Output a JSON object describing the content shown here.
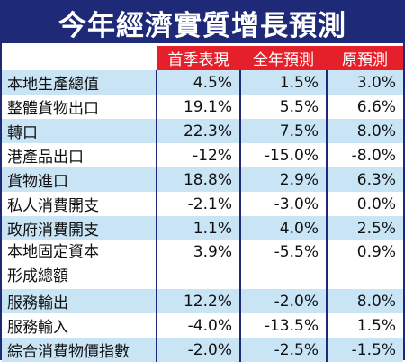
{
  "title": "今年經濟實質增長預測",
  "chart_data": {
    "type": "table",
    "columns": [
      "首季表現",
      "全年預測",
      "原預測"
    ],
    "rows": [
      {
        "label": "本地生產總值",
        "values": [
          "4.5%",
          "1.5%",
          "3.0%"
        ]
      },
      {
        "label": "整體貨物出口",
        "values": [
          "19.1%",
          "5.5%",
          "6.6%"
        ]
      },
      {
        "label": "轉口",
        "values": [
          "22.3%",
          "7.5%",
          "8.0%"
        ]
      },
      {
        "label": "港產品出口",
        "values": [
          "-12%",
          "-15.0%",
          "-8.0%"
        ]
      },
      {
        "label": "貨物進口",
        "values": [
          "18.8%",
          "2.9%",
          "6.3%"
        ]
      },
      {
        "label": "私人消費開支",
        "values": [
          "-2.1%",
          "-3.0%",
          "0.0%"
        ]
      },
      {
        "label": "政府消費開支",
        "values": [
          "1.1%",
          "4.0%",
          "2.5%"
        ]
      },
      {
        "label": "本地固定資本形成總額",
        "label_line1": "本地固定資本",
        "label_line2": "形成總額",
        "values": [
          "3.9%",
          "-5.5%",
          "0.9%"
        ]
      },
      {
        "label": "服務輸出",
        "values": [
          "12.2%",
          "-2.0%",
          "8.0%"
        ]
      },
      {
        "label": "服務輸入",
        "values": [
          "-4.0%",
          "-13.5%",
          "1.5%"
        ]
      },
      {
        "label": "綜合消費物價指數",
        "values": [
          "-2.0%",
          "-2.5%",
          "-1.5%"
        ]
      }
    ]
  }
}
